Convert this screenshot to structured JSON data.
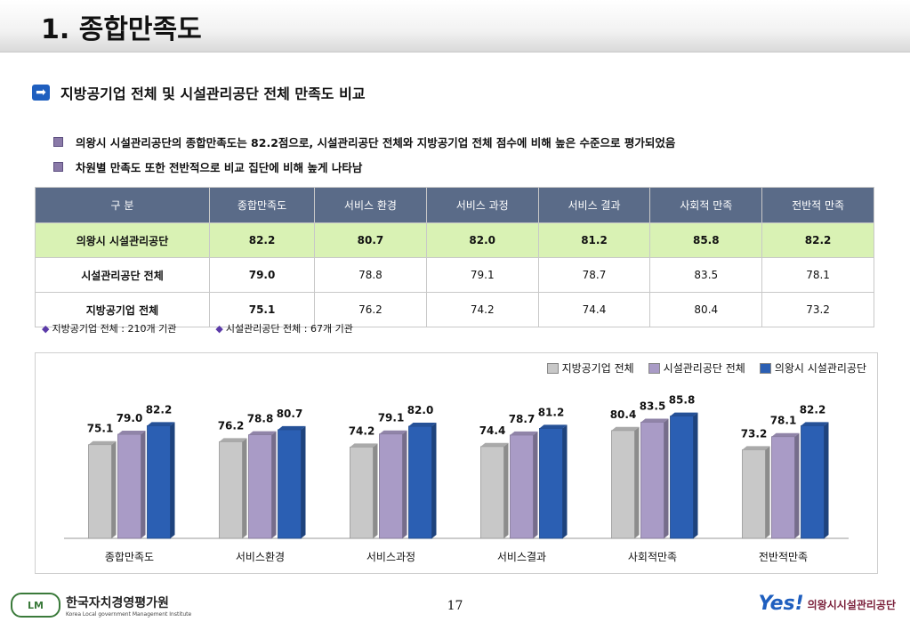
{
  "title": "1. 종합만족도",
  "subheading": "지방공기업 전체 및 시설관리공단 전체 만족도 비교",
  "bullets": [
    "의왕시 시설관리공단의 종합만족도는 82.2점으로, 시설관리공단 전체와 지방공기업 전체 점수에 비해 높은 수준으로 평가되었음",
    "차원별 만족도 또한 전반적으로 비교 집단에 비해 높게 나타남"
  ],
  "table": {
    "headers": [
      "구  분",
      "종합만족도",
      "서비스 환경",
      "서비스 과정",
      "서비스 결과",
      "사회적 만족",
      "전반적 만족"
    ],
    "rows": [
      [
        "의왕시 시설관리공단",
        "82.2",
        "80.7",
        "82.0",
        "81.2",
        "85.8",
        "82.2"
      ],
      [
        "시설관리공단 전체",
        "79.0",
        "78.8",
        "79.1",
        "78.7",
        "83.5",
        "78.1"
      ],
      [
        "지방공기업 전체",
        "75.1",
        "76.2",
        "74.2",
        "74.4",
        "80.4",
        "73.2"
      ]
    ]
  },
  "notes": [
    "지방공기업 전체 : 210개 기관",
    "시설관리공단 전체 : 67개 기관"
  ],
  "chart_data": {
    "type": "bar",
    "categories": [
      "종합만족도",
      "서비스환경",
      "서비스과정",
      "서비스결과",
      "사회적만족",
      "전반적만족"
    ],
    "series": [
      {
        "name": "지방공기업 전체",
        "color": "#c8c8c8",
        "values": [
          75.1,
          76.2,
          74.2,
          74.4,
          80.4,
          73.2
        ]
      },
      {
        "name": "시설관리공단 전체",
        "color": "#a99bc6",
        "values": [
          79.0,
          78.8,
          79.1,
          78.7,
          83.5,
          78.1
        ]
      },
      {
        "name": "의왕시 시설관리공단",
        "color": "#2b5fb3",
        "values": [
          82.2,
          80.7,
          82.0,
          81.2,
          85.8,
          82.2
        ]
      }
    ],
    "legend": "top-right",
    "grid": false
  },
  "footer": {
    "page": "17",
    "left_logo_mark": "LM",
    "left_org_ko": "한국자치경영평가원",
    "left_org_en": "Korea Local government Management Institute",
    "right_logo_yes": "Yes!",
    "right_org": "의왕시시설관리공단"
  }
}
